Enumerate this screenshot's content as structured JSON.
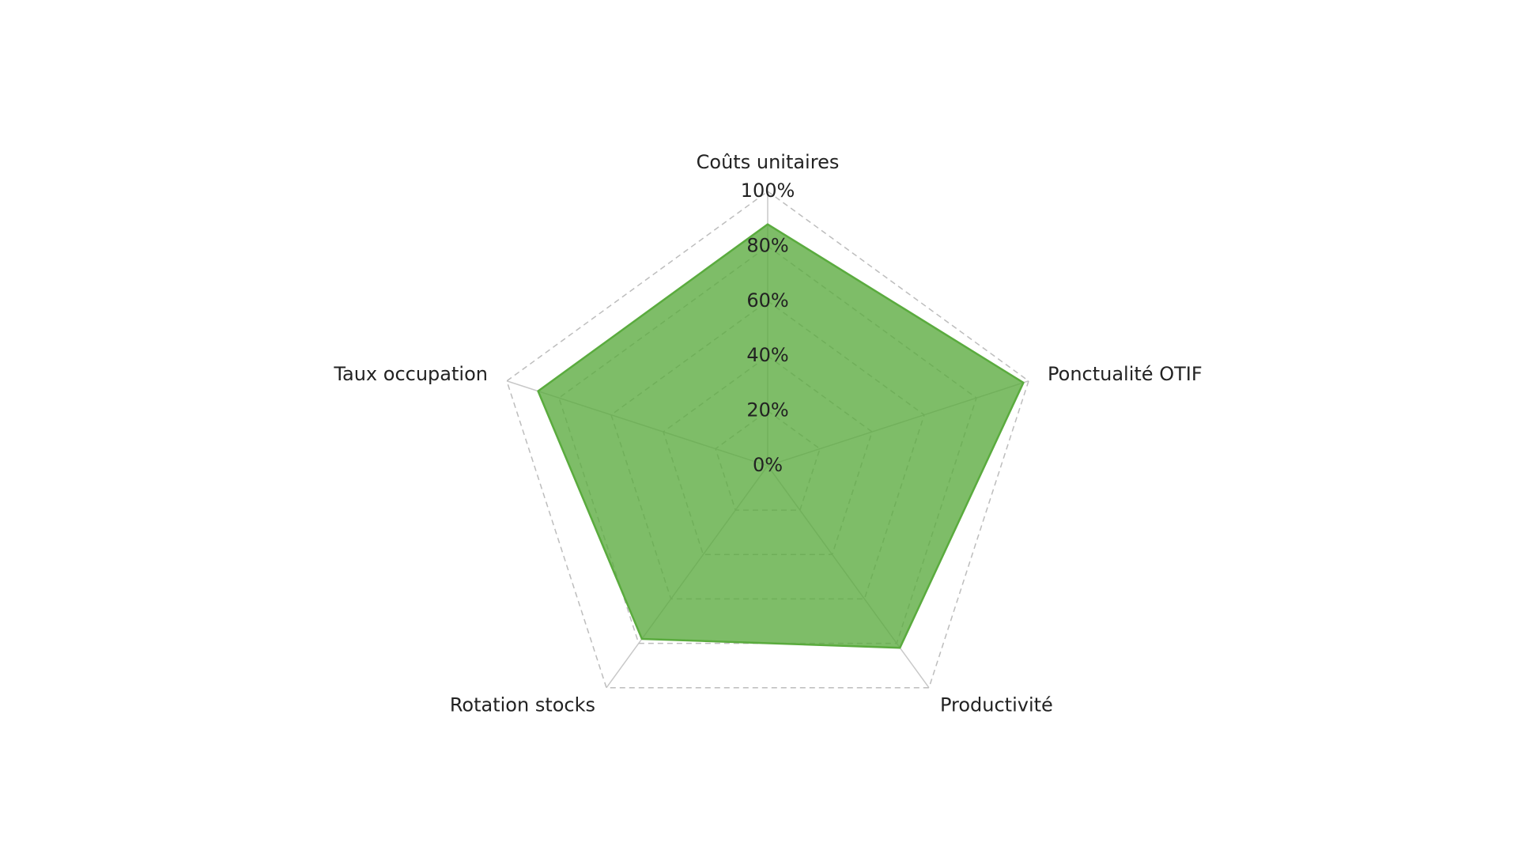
{
  "chart_data": {
    "type": "radar",
    "categories": [
      "Coûts unitaires",
      "Ponctualité OTIF",
      "Productivité",
      "Rotation stocks",
      "Taux occupation"
    ],
    "values": [
      88,
      98,
      82,
      78,
      88
    ],
    "color": "#5aab3e",
    "ylim": [
      0,
      100
    ],
    "yticks": [
      {
        "value": 0,
        "label": "0%"
      },
      {
        "value": 20,
        "label": "20%"
      },
      {
        "value": 40,
        "label": "40%"
      },
      {
        "value": 60,
        "label": "60%"
      },
      {
        "value": 80,
        "label": "80%"
      },
      {
        "value": 100,
        "label": "100%"
      }
    ],
    "grid": true
  }
}
